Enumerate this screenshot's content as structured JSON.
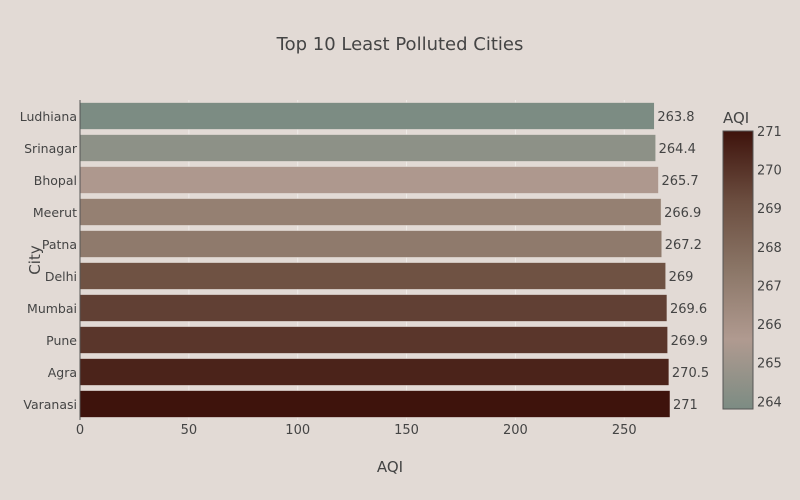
{
  "chart_data": {
    "type": "bar",
    "orientation": "horizontal",
    "title": "Top 10 Least Polluted Cities",
    "xlabel": "AQI",
    "ylabel": "City",
    "categories": [
      "Ludhiana",
      "Srinagar",
      "Bhopal",
      "Meerut",
      "Patna",
      "Delhi",
      "Mumbai",
      "Pune",
      "Agra",
      "Varanasi"
    ],
    "values": [
      263.8,
      264.4,
      265.7,
      266.9,
      267.2,
      269,
      269.6,
      269.9,
      270.5,
      271
    ],
    "data_labels": [
      "263.8",
      "264.4",
      "265.7",
      "266.9",
      "267.2",
      "269",
      "269.6",
      "269.9",
      "270.5",
      "271"
    ],
    "xlim": [
      0,
      271
    ],
    "xticks": [
      0,
      50,
      100,
      150,
      200,
      250
    ],
    "grid": true,
    "colorbar": {
      "title": "AQI",
      "range": [
        263.8,
        271
      ],
      "ticks": [
        264,
        265,
        266,
        267,
        268,
        269,
        270,
        271
      ],
      "colorscale": [
        "#7c8c83",
        "#b09a90",
        "#8b7667",
        "#6b4d3f",
        "#3e130c"
      ]
    }
  }
}
